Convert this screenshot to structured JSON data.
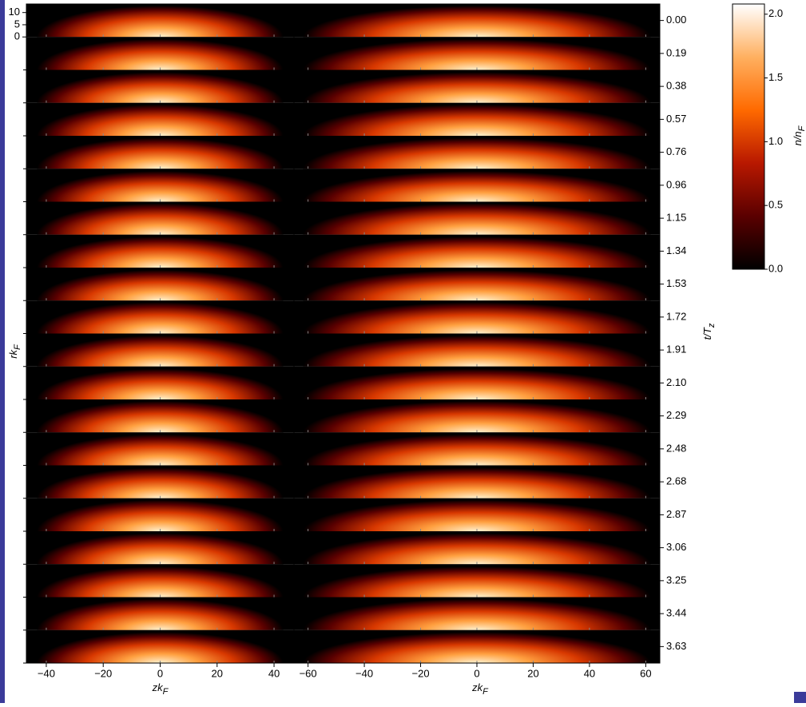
{
  "chart_data": {
    "type": "heatmap",
    "y_label": "rkF",
    "right_label": "t/Tz",
    "ylim": [
      0,
      13.5
    ],
    "yticks": [
      0,
      5,
      10
    ],
    "times": [
      {
        "value": 0.0,
        "label": "0.00"
      },
      {
        "value": 0.19,
        "label": "0.19"
      },
      {
        "value": 0.38,
        "label": "0.38"
      },
      {
        "value": 0.57,
        "label": "0.57"
      },
      {
        "value": 0.76,
        "label": "0.76"
      },
      {
        "value": 0.96,
        "label": "0.96"
      },
      {
        "value": 1.15,
        "label": "1.15"
      },
      {
        "value": 1.34,
        "label": "1.34"
      },
      {
        "value": 1.53,
        "label": "1.53"
      },
      {
        "value": 1.72,
        "label": "1.72"
      },
      {
        "value": 1.91,
        "label": "1.91"
      },
      {
        "value": 2.1,
        "label": "2.10"
      },
      {
        "value": 2.29,
        "label": "2.29"
      },
      {
        "value": 2.48,
        "label": "2.48"
      },
      {
        "value": 2.68,
        "label": "2.68"
      },
      {
        "value": 2.87,
        "label": "2.87"
      },
      {
        "value": 3.06,
        "label": "3.06"
      },
      {
        "value": 3.25,
        "label": "3.25"
      },
      {
        "value": 3.44,
        "label": "3.44"
      },
      {
        "value": 3.63,
        "label": "3.63"
      }
    ],
    "panels": [
      {
        "x_label": "zkF",
        "xlim": [
          -47,
          47
        ],
        "xticks": [
          {
            "value": -40,
            "label": "−40"
          },
          {
            "value": -20,
            "label": "−20"
          },
          0,
          20,
          40
        ]
      },
      {
        "x_label": "zkF",
        "xlim": [
          -65,
          65
        ],
        "xticks": [
          {
            "value": -60,
            "label": "−60"
          },
          {
            "value": -40,
            "label": "−40"
          },
          {
            "value": -20,
            "label": "−20"
          },
          0,
          20,
          40,
          60
        ]
      }
    ],
    "colorbar": {
      "label": "n/nF",
      "lim": [
        0,
        2.08
      ],
      "ticks": [
        {
          "value": 0,
          "label": "0.0"
        },
        {
          "value": 0.5,
          "label": "0.5"
        },
        {
          "value": 1,
          "label": "1.0"
        },
        {
          "value": 1.5,
          "label": "1.5"
        },
        {
          "value": 2,
          "label": "2.0"
        }
      ],
      "colormap": [
        "#000000",
        "#5a0000",
        "#b81800",
        "#ff6a00",
        "#ffb060",
        "#ffffff"
      ]
    }
  }
}
